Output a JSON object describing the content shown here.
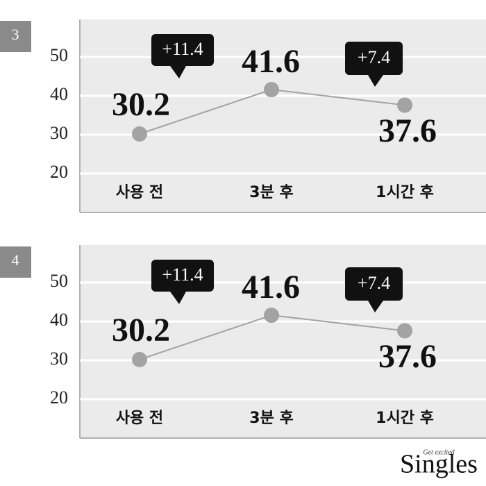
{
  "chart_data": [
    {
      "type": "line",
      "panel": "3",
      "categories": [
        "사용 전",
        "3분 후",
        "1시간 후"
      ],
      "series": [
        {
          "color": "#a3a3a3",
          "values": [
            30.2,
            41.6,
            37.6
          ]
        }
      ],
      "annotations": [
        "+11.4",
        "+7.4"
      ],
      "ylim": [
        10,
        60
      ],
      "yticks": [
        20,
        30,
        40,
        50
      ],
      "grid": true
    },
    {
      "type": "line",
      "panel": "4",
      "categories": [
        "사용 전",
        "3분 후",
        "1시간 후"
      ],
      "series": [
        {
          "color": "#a3a3a3",
          "values": [
            30.2,
            41.6,
            37.6
          ]
        }
      ],
      "annotations": [
        "+11.4",
        "+7.4"
      ],
      "ylim": [
        10,
        60
      ],
      "yticks": [
        20,
        30,
        40,
        50
      ],
      "grid": true
    }
  ],
  "brand": "Singles",
  "tagline": "Get excited"
}
